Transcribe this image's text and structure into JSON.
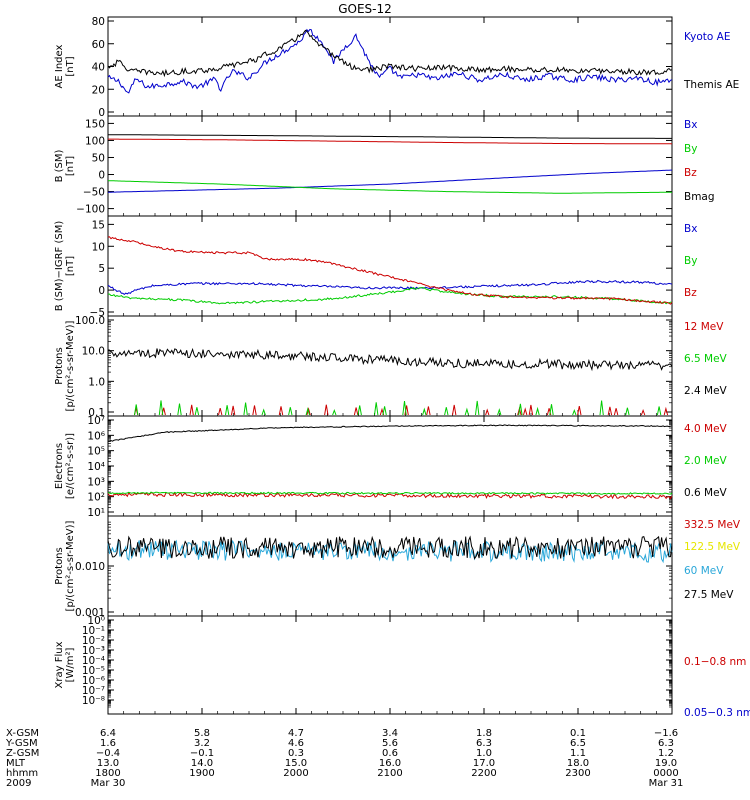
{
  "chart_data": {
    "type": "line",
    "title": "GOES-12",
    "x_range_hhmm": [
      "1800",
      "0000"
    ],
    "panels": [
      {
        "name": "ae-index",
        "ylabel_lines": [
          "AE Index",
          "[nT]"
        ],
        "scale": "linear",
        "ylim": [
          0,
          80
        ],
        "ticks": [
          "80",
          "60",
          "40",
          "20",
          "0"
        ],
        "series": [
          {
            "name": "Kyoto AE",
            "color": "#0000cc",
            "points": [
              [
                0,
                30
              ],
              [
                0.02,
                27
              ],
              [
                0.035,
                16
              ],
              [
                0.05,
                29
              ],
              [
                0.07,
                22
              ],
              [
                0.1,
                24
              ],
              [
                0.13,
                27
              ],
              [
                0.16,
                22
              ],
              [
                0.19,
                29
              ],
              [
                0.2,
                20
              ],
              [
                0.22,
                36
              ],
              [
                0.25,
                30
              ],
              [
                0.28,
                44
              ],
              [
                0.3,
                50
              ],
              [
                0.32,
                56
              ],
              [
                0.34,
                62
              ],
              [
                0.355,
                73
              ],
              [
                0.37,
                66
              ],
              [
                0.385,
                58
              ],
              [
                0.4,
                44
              ],
              [
                0.42,
                57
              ],
              [
                0.44,
                67
              ],
              [
                0.46,
                47
              ],
              [
                0.48,
                30
              ],
              [
                0.5,
                38
              ],
              [
                0.52,
                30
              ],
              [
                0.55,
                33
              ],
              [
                0.58,
                29
              ],
              [
                0.62,
                34
              ],
              [
                0.66,
                28
              ],
              [
                0.7,
                33
              ],
              [
                0.74,
                28
              ],
              [
                0.78,
                32
              ],
              [
                0.82,
                28
              ],
              [
                0.86,
                31
              ],
              [
                0.9,
                28
              ],
              [
                0.94,
                30
              ],
              [
                0.97,
                26
              ],
              [
                1,
                28
              ]
            ]
          },
          {
            "name": "Themis AE",
            "color": "#000000",
            "points": [
              [
                0,
                40
              ],
              [
                0.02,
                44
              ],
              [
                0.04,
                36
              ],
              [
                0.07,
                35
              ],
              [
                0.1,
                34
              ],
              [
                0.14,
                36
              ],
              [
                0.18,
                37
              ],
              [
                0.22,
                41
              ],
              [
                0.26,
                46
              ],
              [
                0.3,
                55
              ],
              [
                0.33,
                63
              ],
              [
                0.35,
                72
              ],
              [
                0.37,
                60
              ],
              [
                0.4,
                50
              ],
              [
                0.43,
                40
              ],
              [
                0.46,
                37
              ],
              [
                0.5,
                40
              ],
              [
                0.55,
                38
              ],
              [
                0.6,
                39
              ],
              [
                0.65,
                37
              ],
              [
                0.7,
                38
              ],
              [
                0.75,
                37
              ],
              [
                0.8,
                37
              ],
              [
                0.85,
                36
              ],
              [
                0.9,
                36
              ],
              [
                0.95,
                35
              ],
              [
                1,
                36
              ]
            ]
          }
        ]
      },
      {
        "name": "b-sm",
        "ylabel_lines": [
          "B (SM)",
          "[nT]"
        ],
        "scale": "linear",
        "ylim": [
          -110,
          160
        ],
        "ticks": [
          "150",
          "100",
          "50",
          "0",
          "−50",
          "−100"
        ],
        "series": [
          {
            "name": "Bx",
            "color": "#0000cc",
            "points": [
              [
                0,
                -52
              ],
              [
                0.3,
                -40
              ],
              [
                0.5,
                -28
              ],
              [
                0.7,
                -10
              ],
              [
                0.85,
                3
              ],
              [
                1,
                13
              ]
            ]
          },
          {
            "name": "By",
            "color": "#00cc00",
            "points": [
              [
                0,
                -18
              ],
              [
                0.2,
                -28
              ],
              [
                0.4,
                -42
              ],
              [
                0.6,
                -50
              ],
              [
                0.8,
                -55
              ],
              [
                1,
                -52
              ]
            ]
          },
          {
            "name": "Bz",
            "color": "#cc0000",
            "points": [
              [
                0,
                104
              ],
              [
                0.2,
                102
              ],
              [
                0.4,
                98
              ],
              [
                0.6,
                94
              ],
              [
                0.8,
                91
              ],
              [
                1,
                90
              ]
            ]
          },
          {
            "name": "Bmag",
            "color": "#000000",
            "points": [
              [
                0,
                117
              ],
              [
                0.3,
                114
              ],
              [
                0.6,
                110
              ],
              [
                0.8,
                107
              ],
              [
                1,
                106
              ]
            ]
          }
        ]
      },
      {
        "name": "b-minus-igrf",
        "ylabel_lines": [
          "B (SM)−IGRF (SM)",
          "[nT]"
        ],
        "scale": "linear",
        "ylim": [
          -5,
          16
        ],
        "ticks": [
          "15",
          "10",
          "5",
          "0",
          "−5"
        ],
        "series": [
          {
            "name": "Bx",
            "color": "#0000cc",
            "points": [
              [
                0,
                1
              ],
              [
                0.03,
                -1
              ],
              [
                0.05,
                0
              ],
              [
                0.08,
                1
              ],
              [
                0.15,
                1.5
              ],
              [
                0.25,
                1.5
              ],
              [
                0.35,
                1
              ],
              [
                0.45,
                0.5
              ],
              [
                0.55,
                0.5
              ],
              [
                0.65,
                0.8
              ],
              [
                0.75,
                1.2
              ],
              [
                0.85,
                2
              ],
              [
                0.95,
                1.8
              ],
              [
                1,
                1.3
              ]
            ]
          },
          {
            "name": "By",
            "color": "#00cc00",
            "points": [
              [
                0,
                -1
              ],
              [
                0.05,
                -2
              ],
              [
                0.1,
                -2
              ],
              [
                0.2,
                -3
              ],
              [
                0.3,
                -2.5
              ],
              [
                0.4,
                -2
              ],
              [
                0.5,
                -0.5
              ],
              [
                0.55,
                0.5
              ],
              [
                0.6,
                -0.5
              ],
              [
                0.7,
                -1.5
              ],
              [
                0.8,
                -1.5
              ],
              [
                0.9,
                -2
              ],
              [
                1,
                -3
              ]
            ]
          },
          {
            "name": "Bz",
            "color": "#cc0000",
            "points": [
              [
                0,
                12
              ],
              [
                0.05,
                11
              ],
              [
                0.08,
                10
              ],
              [
                0.12,
                9
              ],
              [
                0.18,
                8.5
              ],
              [
                0.25,
                8.5
              ],
              [
                0.28,
                7
              ],
              [
                0.35,
                7
              ],
              [
                0.4,
                6
              ],
              [
                0.45,
                4.5
              ],
              [
                0.5,
                3
              ],
              [
                0.55,
                1.5
              ],
              [
                0.6,
                0
              ],
              [
                0.65,
                -1
              ],
              [
                0.7,
                -1.5
              ],
              [
                0.8,
                -1.8
              ],
              [
                0.9,
                -2
              ],
              [
                1,
                -3
              ]
            ]
          }
        ]
      },
      {
        "name": "protons-high",
        "ylabel_lines": [
          "Protons",
          "[p/(cm²-s-sr-MeV)]"
        ],
        "scale": "log",
        "ylim_exp": [
          -1,
          2
        ],
        "ticks": [
          "100.0",
          "10.0",
          "1.0",
          "0.1"
        ],
        "series": [
          {
            "name": "12 MeV",
            "color": "#cc0000",
            "noise_log": [
              -0.95,
              -0.75
            ]
          },
          {
            "name": "6.5 MeV",
            "color": "#00cc00",
            "noise_log": [
              -0.95,
              -0.6
            ]
          },
          {
            "name": "2.4 MeV",
            "color": "#000000",
            "trend_log": [
              [
                0,
                0.95
              ],
              [
                0.3,
                0.85
              ],
              [
                0.6,
                0.6
              ],
              [
                1,
                0.5
              ]
            ],
            "jitter": 0.15
          }
        ]
      },
      {
        "name": "electrons",
        "ylabel_lines": [
          "Electrons",
          "[e/(cm²-s-sr)]"
        ],
        "scale": "log",
        "ylim_exp": [
          1,
          7
        ],
        "ticks": [
          "10⁷",
          "10⁶",
          "10⁵",
          "10⁴",
          "10³",
          "10²",
          "10¹"
        ],
        "series": [
          {
            "name": "4.0 MeV",
            "color": "#cc0000",
            "trend_log": [
              [
                0,
                2.15
              ],
              [
                1,
                2.0
              ]
            ],
            "jitter": 0.12
          },
          {
            "name": "2.0 MeV",
            "color": "#00cc00",
            "trend_log": [
              [
                0,
                2.25
              ],
              [
                1,
                2.2
              ]
            ],
            "jitter": 0.05
          },
          {
            "name": "0.6 MeV",
            "color": "#000000",
            "trend_log": [
              [
                0,
                5.6
              ],
              [
                0.1,
                6.2
              ],
              [
                0.3,
                6.5
              ],
              [
                0.5,
                6.6
              ],
              [
                0.7,
                6.65
              ],
              [
                1,
                6.6
              ]
            ],
            "jitter": 0.03
          }
        ]
      },
      {
        "name": "protons-low",
        "ylabel_lines": [
          "Protons",
          "[p/(cm²-s-sr-MeV)]"
        ],
        "scale": "log",
        "ylim_exp": [
          -3,
          -1
        ],
        "ticks": [
          "0.010",
          "0.001"
        ],
        "series": [
          {
            "name": "332.5 MeV",
            "color": "#cc0000"
          },
          {
            "name": "122.5 MeV",
            "color": "#e6e600"
          },
          {
            "name": "60 MeV",
            "color": "#2aa7d9",
            "trend_log": [
              [
                0,
                -1.65
              ],
              [
                1,
                -1.7
              ]
            ],
            "jitter": 0.22
          },
          {
            "name": "27.5 MeV",
            "color": "#000000",
            "trend_log": [
              [
                0,
                -1.6
              ],
              [
                1,
                -1.6
              ]
            ],
            "jitter": 0.24
          }
        ]
      },
      {
        "name": "xray",
        "ylabel_lines": [
          "Xray Flux",
          "[W/m²]"
        ],
        "scale": "log",
        "ylim_exp": [
          -9,
          0
        ],
        "ticks": [
          "10⁰",
          "10⁻¹",
          "10⁻²",
          "10⁻³",
          "10⁻⁴",
          "10⁻⁵",
          "10⁻⁶",
          "10⁻⁷",
          "10⁻⁸"
        ],
        "series": [
          {
            "name": "0.1−0.8 nm",
            "color": "#cc0000"
          },
          {
            "name": "0.05−0.3 nm",
            "color": "#0000cc"
          }
        ]
      }
    ],
    "time_table": {
      "row_labels": [
        "X-GSM",
        "Y-GSM",
        "Z-GSM",
        "MLT",
        "hhmm",
        "2009"
      ],
      "columns": [
        [
          "6.4",
          "1.6",
          "−0.4",
          "13.0",
          "1800",
          "Mar 30"
        ],
        [
          "5.8",
          "3.2",
          "−0.1",
          "14.0",
          "1900",
          ""
        ],
        [
          "4.7",
          "4.6",
          "0.3",
          "15.0",
          "2000",
          ""
        ],
        [
          "3.4",
          "5.6",
          "0.6",
          "16.0",
          "2100",
          ""
        ],
        [
          "1.8",
          "6.3",
          "1.0",
          "17.0",
          "2200",
          ""
        ],
        [
          "0.1",
          "6.5",
          "1.1",
          "18.0",
          "2300",
          ""
        ],
        [
          "−1.6",
          "6.3",
          "1.2",
          "19.0",
          "0000",
          "Mar 31"
        ]
      ]
    }
  }
}
